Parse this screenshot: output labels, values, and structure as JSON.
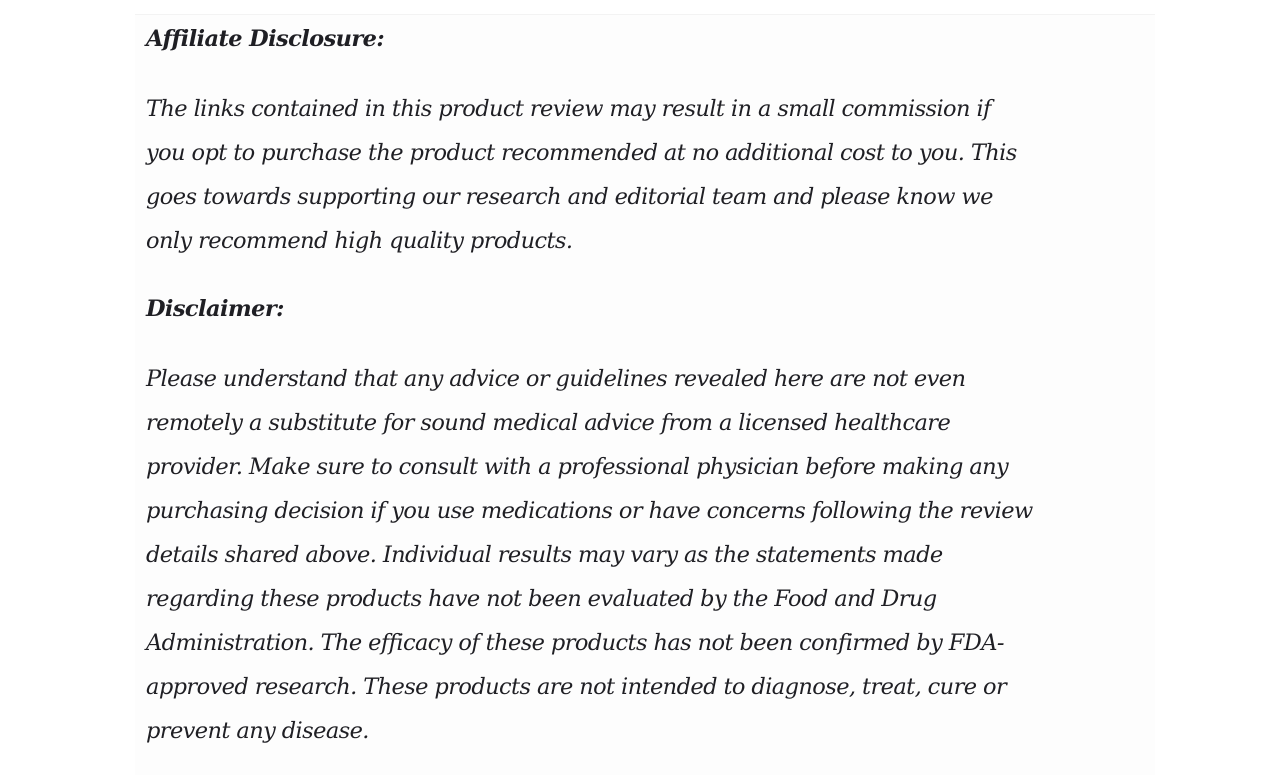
{
  "affiliate": {
    "heading": "Affiliate Disclosure:",
    "lines": [
      "The links contained in this product review may result in a small commission if",
      "you opt to purchase the product recommended at no additional cost to you. This",
      "goes towards supporting our research and editorial team and please know we",
      "only recommend high quality products."
    ]
  },
  "disclaimer": {
    "heading": "Disclaimer:",
    "lines": [
      "Please understand that any advice or guidelines revealed here are not even",
      "remotely a substitute for sound medical advice from a licensed healthcare",
      "provider. Make sure to consult with a professional physician before making any",
      "purchasing decision if you use medications or have concerns following the review",
      "details shared above. Individual results may vary as the statements made",
      "regarding these products have not been evaluated by the Food and Drug",
      "Administration. The efficacy of these products has not been confirmed by FDA-",
      "approved research. These products are not intended to diagnose, treat, cure or",
      "prevent any disease."
    ]
  }
}
